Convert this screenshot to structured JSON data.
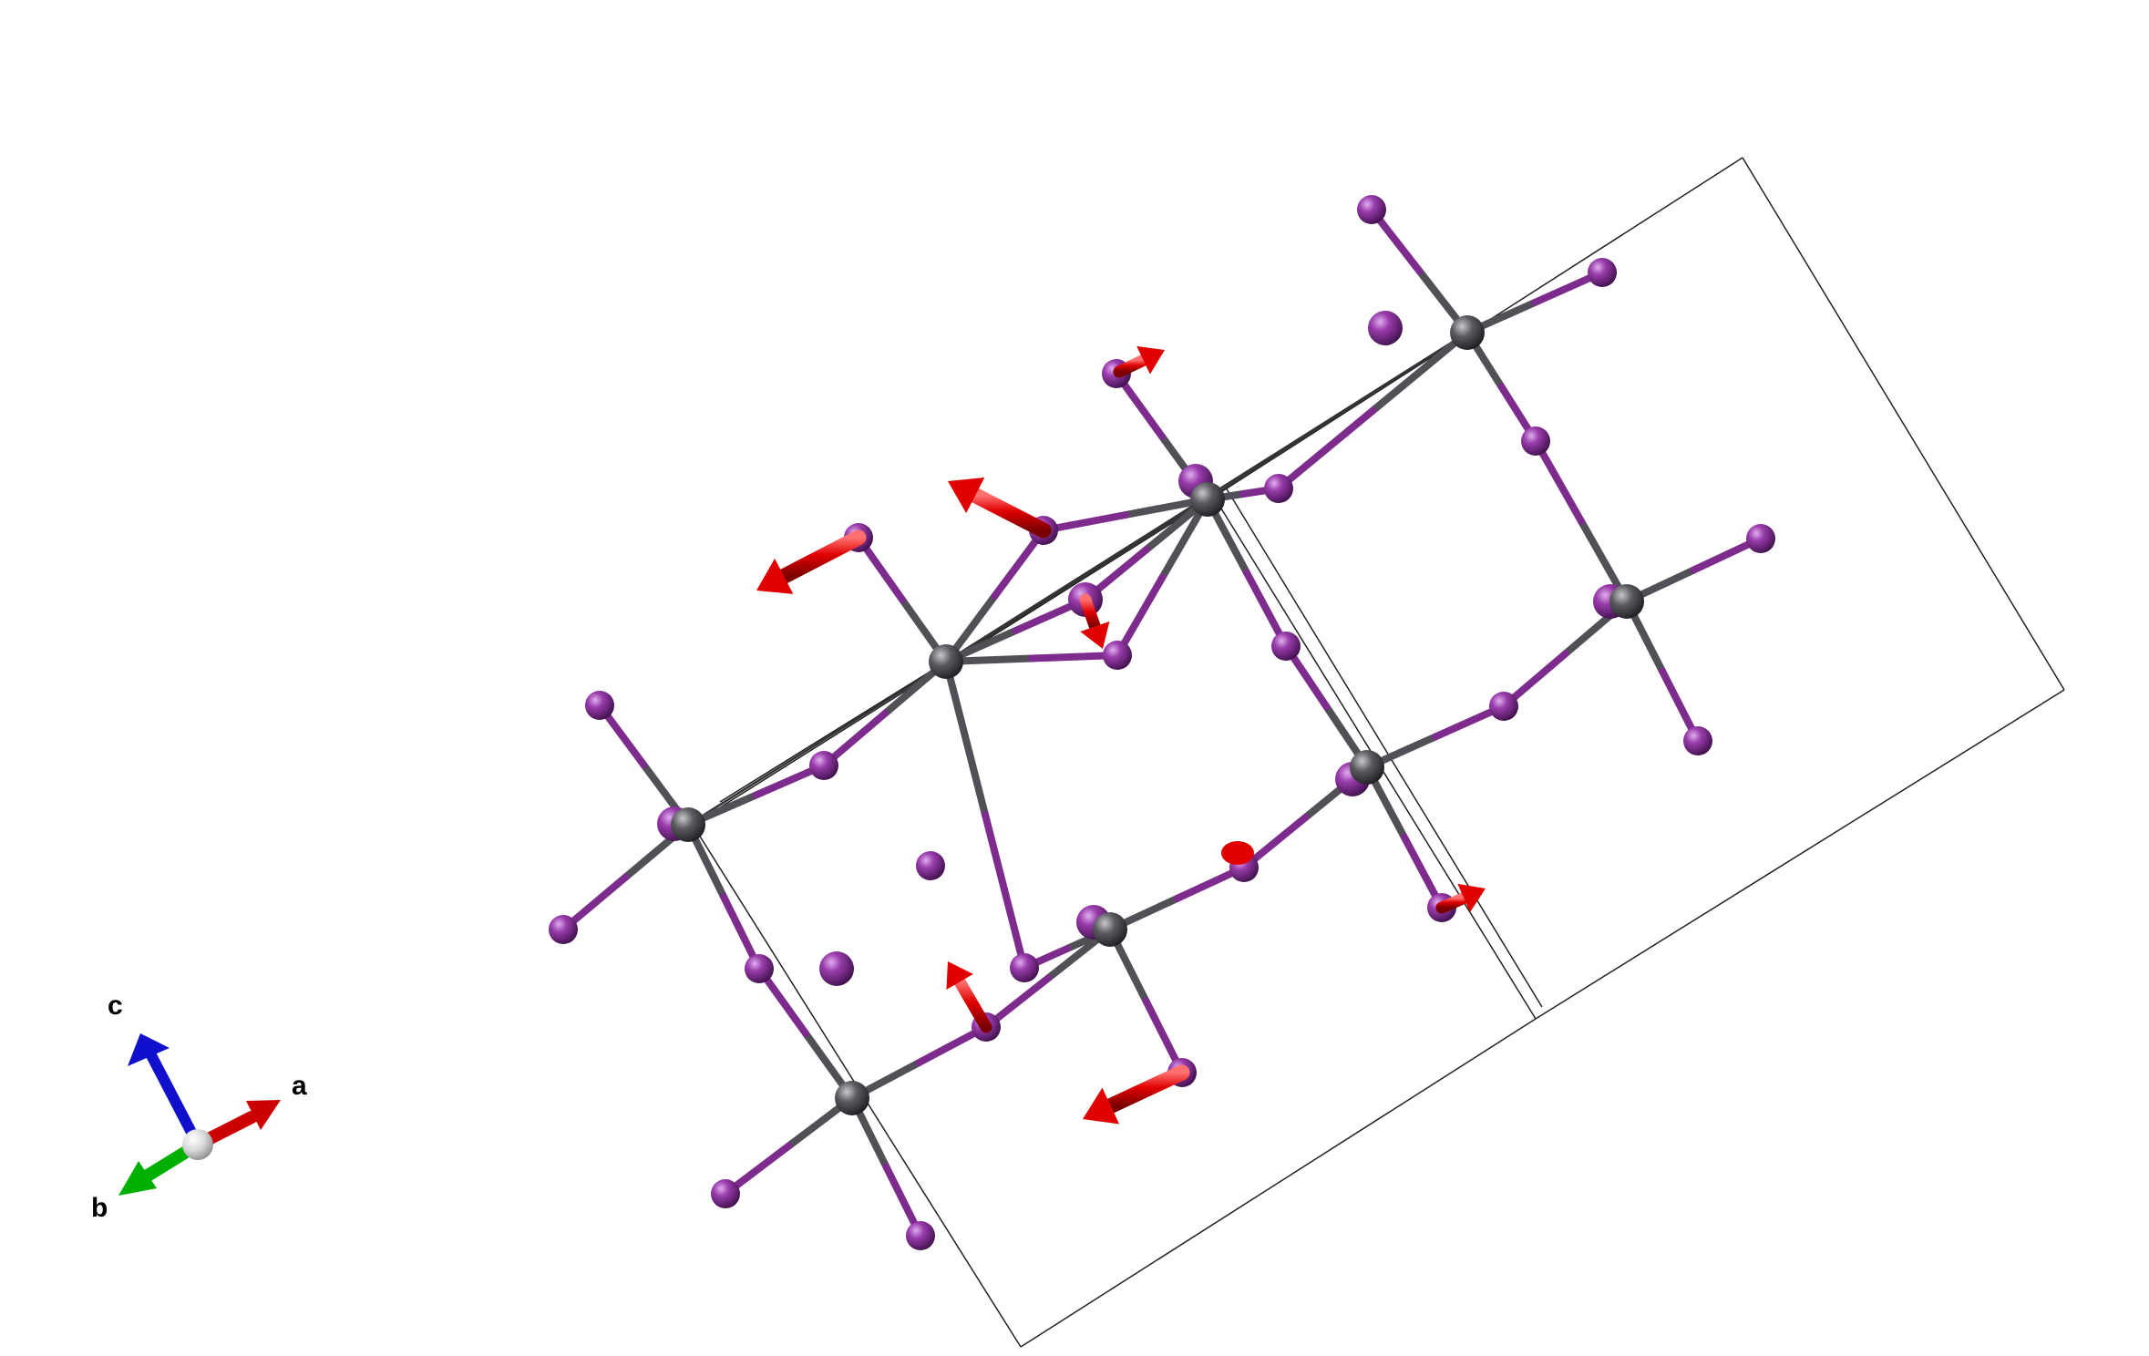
{
  "axes": {
    "a": {
      "label": "a",
      "color": "#cc0000"
    },
    "b": {
      "label": "b",
      "color": "#00b000"
    },
    "c": {
      "label": "c",
      "color": "#1010cc"
    },
    "origin_color": "#d9d9d9"
  },
  "colors": {
    "purple_atom": "#7a2a8a",
    "gray_atom": "#505056",
    "purple_bond": "#7d2b8c",
    "gray_bond": "#505056",
    "cell_line": "#222222",
    "arrow": "#e00000"
  },
  "structure": {
    "cell_lines": [
      [
        1912,
        173,
        2265,
        757
      ],
      [
        2265,
        757,
        1685,
        1118
      ],
      [
        1685,
        1118,
        1120,
        1478
      ],
      [
        1120,
        1478,
        760,
        905
      ],
      [
        1332,
        545,
        1685,
        1118
      ],
      [
        760,
        905,
        1332,
        545
      ],
      [
        1332,
        545,
        1912,
        173
      ],
      [
        1345,
        535,
        1692,
        1105
      ],
      [
        790,
        880,
        1325,
        548
      ]
    ],
    "gray_atoms": [
      [
        755,
        905
      ],
      [
        1038,
        726
      ],
      [
        1325,
        548
      ],
      [
        1610,
        365
      ],
      [
        935,
        1205
      ],
      [
        1218,
        1020
      ],
      [
        1500,
        842
      ],
      [
        1785,
        660
      ]
    ],
    "purple_atoms": [
      [
        740,
        904,
        true
      ],
      [
        904,
        840,
        false
      ],
      [
        1124,
        1062,
        false
      ],
      [
        1021,
        950,
        false
      ],
      [
        1520,
        360,
        true
      ],
      [
        1403,
        536,
        false
      ],
      [
        1312,
        528,
        true
      ],
      [
        1411,
        709,
        false
      ],
      [
        1685,
        484,
        false
      ],
      [
        1505,
        230,
        false
      ],
      [
        1758,
        299,
        false
      ],
      [
        1932,
        591,
        false
      ],
      [
        1767,
        660,
        true
      ],
      [
        1863,
        813,
        false
      ],
      [
        1650,
        775,
        false
      ],
      [
        1484,
        855,
        true
      ],
      [
        1582,
        996,
        false
      ],
      [
        1365,
        952,
        false
      ],
      [
        1200,
        1012,
        true
      ],
      [
        833,
        1063,
        false
      ],
      [
        918,
        1063,
        true
      ],
      [
        796,
        1310,
        false
      ],
      [
        1010,
        1356,
        false
      ],
      [
        1297,
        1177,
        false
      ],
      [
        1082,
        1127,
        false
      ],
      [
        618,
        1020,
        false
      ],
      [
        658,
        774,
        false
      ],
      [
        1225,
        410,
        false
      ],
      [
        1145,
        582,
        false
      ],
      [
        942,
        590,
        false
      ],
      [
        1191,
        658,
        true
      ],
      [
        1226,
        719,
        false
      ]
    ],
    "bonds": [
      [
        755,
        905,
        658,
        774
      ],
      [
        755,
        905,
        618,
        1020
      ],
      [
        755,
        905,
        904,
        840
      ],
      [
        755,
        905,
        833,
        1063
      ],
      [
        1038,
        726,
        942,
        590
      ],
      [
        1038,
        726,
        1145,
        582
      ],
      [
        1038,
        726,
        1191,
        658
      ],
      [
        1038,
        726,
        1226,
        719
      ],
      [
        1038,
        726,
        1124,
        1062
      ],
      [
        1038,
        726,
        904,
        840
      ],
      [
        1325,
        548,
        1225,
        410
      ],
      [
        1325,
        548,
        1145,
        582
      ],
      [
        1325,
        548,
        1191,
        658
      ],
      [
        1325,
        548,
        1226,
        719
      ],
      [
        1325,
        548,
        1403,
        536
      ],
      [
        1325,
        548,
        1411,
        709
      ],
      [
        1610,
        365,
        1505,
        230
      ],
      [
        1610,
        365,
        1758,
        299
      ],
      [
        1610,
        365,
        1685,
        484
      ],
      [
        1610,
        365,
        1403,
        536
      ],
      [
        935,
        1205,
        1082,
        1127
      ],
      [
        935,
        1205,
        796,
        1310
      ],
      [
        935,
        1205,
        1010,
        1356
      ],
      [
        935,
        1205,
        833,
        1063
      ],
      [
        1218,
        1020,
        1082,
        1127
      ],
      [
        1218,
        1020,
        1365,
        952
      ],
      [
        1218,
        1020,
        1297,
        1177
      ],
      [
        1218,
        1020,
        1124,
        1062
      ],
      [
        1500,
        842,
        1365,
        952
      ],
      [
        1500,
        842,
        1650,
        775
      ],
      [
        1500,
        842,
        1411,
        709
      ],
      [
        1500,
        842,
        1582,
        996
      ],
      [
        1785,
        660,
        1650,
        775
      ],
      [
        1785,
        660,
        1932,
        591
      ],
      [
        1785,
        660,
        1863,
        813
      ],
      [
        1785,
        660,
        1685,
        484
      ]
    ],
    "thin_lines": [
      [
        1038,
        726,
        1325,
        548
      ],
      [
        1038,
        726,
        1610,
        365
      ],
      [
        755,
        905,
        1325,
        548
      ],
      [
        1325,
        548,
        1610,
        365
      ],
      [
        1038,
        726,
        1226,
        719
      ],
      [
        1038,
        726,
        1191,
        658
      ]
    ],
    "arrows": [
      [
        1228,
        408,
        1278,
        384,
        "m"
      ],
      [
        1145,
        582,
        1040,
        528,
        "l"
      ],
      [
        942,
        590,
        830,
        648,
        "l"
      ],
      [
        1191,
        658,
        1210,
        712,
        "m"
      ],
      [
        1582,
        996,
        1630,
        975,
        "m"
      ],
      [
        1082,
        1127,
        1040,
        1055,
        "m"
      ],
      [
        1297,
        1177,
        1188,
        1228,
        "l"
      ]
    ],
    "nub": [
      1358,
      936
    ]
  }
}
